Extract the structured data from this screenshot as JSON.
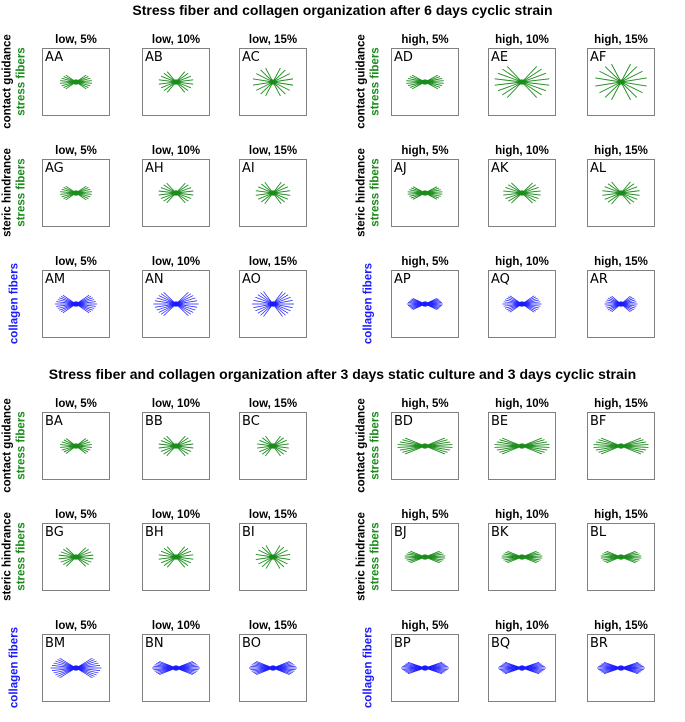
{
  "figure": {
    "sections": [
      {
        "id": "A",
        "title": "Stress fiber and collagen organization after 6 days cyclic strain",
        "rows": [
          {
            "id": "A-row-1",
            "label_primary": "contact guidance",
            "label_secondary": "stress fibers",
            "fiber_type": "stress",
            "panels": [
              {
                "code": "AA",
                "condition": "low, 5%",
                "spread": 0.55,
                "length": 0.55
              },
              {
                "code": "AB",
                "condition": "low, 10%",
                "spread": 0.8,
                "length": 0.6
              },
              {
                "code": "AC",
                "condition": "low, 15%",
                "spread": 1.0,
                "length": 0.7
              },
              {
                "code": "AD",
                "condition": "high, 5%",
                "spread": 0.45,
                "length": 0.65
              },
              {
                "code": "AE",
                "condition": "high, 10%",
                "spread": 0.75,
                "length": 0.95
              },
              {
                "code": "AF",
                "condition": "high, 15%",
                "spread": 1.0,
                "length": 0.9
              }
            ]
          },
          {
            "id": "A-row-2",
            "label_primary": "steric hindrance",
            "label_secondary": "stress fibers",
            "fiber_type": "stress",
            "panels": [
              {
                "code": "AG",
                "condition": "low, 5%",
                "spread": 0.55,
                "length": 0.55
              },
              {
                "code": "AH",
                "condition": "low, 10%",
                "spread": 0.75,
                "length": 0.6
              },
              {
                "code": "AI",
                "condition": "low, 15%",
                "spread": 0.85,
                "length": 0.6
              },
              {
                "code": "AJ",
                "condition": "high, 5%",
                "spread": 0.45,
                "length": 0.6
              },
              {
                "code": "AK",
                "condition": "high, 10%",
                "spread": 0.7,
                "length": 0.65
              },
              {
                "code": "AL",
                "condition": "high, 15%",
                "spread": 0.8,
                "length": 0.65
              }
            ]
          },
          {
            "id": "A-row-3",
            "label_primary": "",
            "label_secondary": "collagen fibers",
            "fiber_type": "collagen",
            "panels": [
              {
                "code": "AM",
                "condition": "low, 5%",
                "spread": 0.55,
                "length": 0.7
              },
              {
                "code": "AN",
                "condition": "low, 10%",
                "spread": 0.7,
                "length": 0.75
              },
              {
                "code": "AO",
                "condition": "low, 15%",
                "spread": 0.85,
                "length": 0.7
              },
              {
                "code": "AP",
                "condition": "high, 5%",
                "spread": 0.4,
                "length": 0.6
              },
              {
                "code": "AQ",
                "condition": "high, 10%",
                "spread": 0.55,
                "length": 0.65
              },
              {
                "code": "AR",
                "condition": "high, 15%",
                "spread": 0.65,
                "length": 0.55
              }
            ]
          }
        ]
      },
      {
        "id": "B",
        "title": "Stress fiber and collagen organization after 3 days static culture and 3 days cyclic strain",
        "rows": [
          {
            "id": "B-row-1",
            "label_primary": "contact guidance",
            "label_secondary": "stress fibers",
            "fiber_type": "stress",
            "panels": [
              {
                "code": "BA",
                "condition": "low, 5%",
                "spread": 0.6,
                "length": 0.55
              },
              {
                "code": "BB",
                "condition": "low, 10%",
                "spread": 0.75,
                "length": 0.6
              },
              {
                "code": "BC",
                "condition": "low, 15%",
                "spread": 0.85,
                "length": 0.55
              },
              {
                "code": "BD",
                "condition": "high, 5%",
                "spread": 0.35,
                "length": 0.95
              },
              {
                "code": "BE",
                "condition": "high, 10%",
                "spread": 0.35,
                "length": 0.95
              },
              {
                "code": "BF",
                "condition": "high, 15%",
                "spread": 0.35,
                "length": 0.95
              }
            ]
          },
          {
            "id": "B-row-2",
            "label_primary": "steric hindrance",
            "label_secondary": "stress fibers",
            "fiber_type": "stress",
            "panels": [
              {
                "code": "BG",
                "condition": "low, 5%",
                "spread": 0.7,
                "length": 0.6
              },
              {
                "code": "BH",
                "condition": "low, 10%",
                "spread": 0.8,
                "length": 0.6
              },
              {
                "code": "BI",
                "condition": "low, 15%",
                "spread": 0.95,
                "length": 0.6
              },
              {
                "code": "BJ",
                "condition": "high, 5%",
                "spread": 0.35,
                "length": 0.7
              },
              {
                "code": "BK",
                "condition": "high, 10%",
                "spread": 0.35,
                "length": 0.7
              },
              {
                "code": "BL",
                "condition": "high, 15%",
                "spread": 0.35,
                "length": 0.7
              }
            ]
          },
          {
            "id": "B-row-3",
            "label_primary": "",
            "label_secondary": "collagen fibers",
            "fiber_type": "collagen",
            "panels": [
              {
                "code": "BM",
                "condition": "low, 5%",
                "spread": 0.5,
                "length": 0.85
              },
              {
                "code": "BN",
                "condition": "low, 10%",
                "spread": 0.35,
                "length": 0.8
              },
              {
                "code": "BO",
                "condition": "low, 15%",
                "spread": 0.35,
                "length": 0.8
              },
              {
                "code": "BP",
                "condition": "high, 5%",
                "spread": 0.3,
                "length": 0.8
              },
              {
                "code": "BQ",
                "condition": "high, 10%",
                "spread": 0.3,
                "length": 0.8
              },
              {
                "code": "BR",
                "condition": "high, 15%",
                "spread": 0.3,
                "length": 0.8
              }
            ]
          }
        ]
      }
    ],
    "colors": {
      "stress": "#1a8c1a",
      "collagen": "#1a1aff",
      "label_black": "#000000",
      "panel_border": "#808080"
    }
  }
}
